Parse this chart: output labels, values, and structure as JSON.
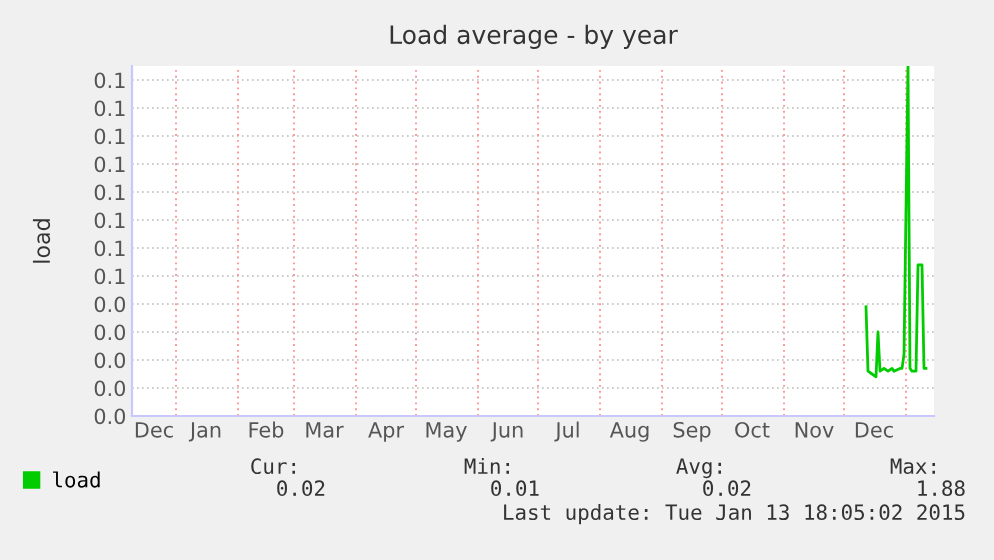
{
  "chart_data": {
    "type": "line",
    "title": "Load average - by year",
    "ylabel": "load",
    "x": [
      "2014-12-12",
      "2014-12-13",
      "2014-12-15",
      "2014-12-17",
      "2014-12-18",
      "2014-12-19",
      "2014-12-21",
      "2014-12-23",
      "2014-12-25",
      "2014-12-26",
      "2014-12-29",
      "2014-12-30",
      "2014-12-31",
      "2015-01-02",
      "2015-01-03",
      "2015-01-04",
      "2015-01-06",
      "2015-01-07",
      "2015-01-09",
      "2015-01-10",
      "2015-01-11"
    ],
    "series": [
      {
        "name": "load",
        "color": "#00cc00",
        "values": [
          0.039,
          0.016,
          0.015,
          0.014,
          0.03,
          0.016,
          0.017,
          0.016,
          0.017,
          0.016,
          0.017,
          0.017,
          0.022,
          0.125,
          0.017,
          0.016,
          0.016,
          0.054,
          0.054,
          0.017,
          0.017
        ]
      }
    ],
    "xlim": [
      "2013-12-10",
      "2015-01-15"
    ],
    "xticks": [
      {
        "value": "2013-12-21",
        "label": "Dec"
      },
      {
        "value": "2014-01-01",
        "label": null
      },
      {
        "value": "2014-01-16",
        "label": "Jan"
      },
      {
        "value": "2014-02-01",
        "label": null
      },
      {
        "value": "2014-02-15",
        "label": "Feb"
      },
      {
        "value": "2014-03-01",
        "label": null
      },
      {
        "value": "2014-03-16",
        "label": "Mar"
      },
      {
        "value": "2014-04-01",
        "label": null
      },
      {
        "value": "2014-04-16",
        "label": "Apr"
      },
      {
        "value": "2014-05-01",
        "label": null
      },
      {
        "value": "2014-05-16",
        "label": "May"
      },
      {
        "value": "2014-06-01",
        "label": null
      },
      {
        "value": "2014-06-16",
        "label": "Jun"
      },
      {
        "value": "2014-07-01",
        "label": null
      },
      {
        "value": "2014-07-16",
        "label": "Jul"
      },
      {
        "value": "2014-08-01",
        "label": null
      },
      {
        "value": "2014-08-16",
        "label": "Aug"
      },
      {
        "value": "2014-09-01",
        "label": null
      },
      {
        "value": "2014-09-16",
        "label": "Sep"
      },
      {
        "value": "2014-10-01",
        "label": null
      },
      {
        "value": "2014-10-16",
        "label": "Oct"
      },
      {
        "value": "2014-11-01",
        "label": null
      },
      {
        "value": "2014-11-16",
        "label": "Nov"
      },
      {
        "value": "2014-12-01",
        "label": null
      },
      {
        "value": "2014-12-16",
        "label": "Dec"
      },
      {
        "value": "2015-01-01",
        "label": null
      }
    ],
    "ylim": [
      0,
      0.125
    ],
    "yticks": [
      {
        "value": 0,
        "label": "0.0"
      },
      {
        "value": 0.01,
        "label": "0.0"
      },
      {
        "value": 0.02,
        "label": "0.0"
      },
      {
        "value": 0.03,
        "label": "0.0"
      },
      {
        "value": 0.04,
        "label": "0.0"
      },
      {
        "value": 0.05,
        "label": "0.1"
      },
      {
        "value": 0.06,
        "label": "0.1"
      },
      {
        "value": 0.07,
        "label": "0.1"
      },
      {
        "value": 0.08,
        "label": "0.1"
      },
      {
        "value": 0.09,
        "label": "0.1"
      },
      {
        "value": 0.1,
        "label": "0.1"
      },
      {
        "value": 0.11,
        "label": "0.1"
      },
      {
        "value": 0.12,
        "label": "0.1"
      }
    ],
    "grid": true,
    "legend": "bottom left",
    "marker": "none",
    "line_style": "solid",
    "annotations": [
      "Cur:",
      "Min:",
      "Avg:",
      "Max:",
      "0.02",
      "0.01",
      "0.02",
      "1.88",
      "Last update: Tue Jan 13 18:05:02 2015"
    ]
  }
}
